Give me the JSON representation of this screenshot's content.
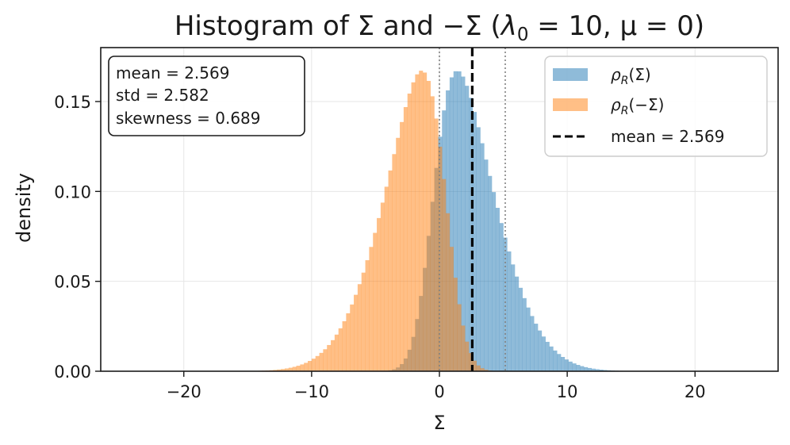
{
  "chart_data": {
    "type": "bar",
    "title": "Histogram of Σ and −Σ (λ₀ = 10, μ = 0)",
    "xlabel": "Σ",
    "ylabel": "density",
    "xlim": [
      -26.5,
      26.5
    ],
    "ylim": [
      0,
      0.18
    ],
    "xticks": [
      -20,
      -10,
      0,
      10,
      20
    ],
    "xtick_labels": [
      "−20",
      "−10",
      "0",
      "10",
      "20"
    ],
    "yticks": [
      0.0,
      0.05,
      0.1,
      0.15
    ],
    "ytick_labels": [
      "0.00",
      "0.05",
      "0.10",
      "0.15"
    ],
    "grid": true,
    "bin_width": 0.3,
    "bin_start": -26.5,
    "bin_end": 26.5,
    "series": [
      {
        "name": "ρ_R(Σ)",
        "color": "#1f77b4",
        "opacity": 0.5,
        "distribution": "skew-normal",
        "mean": 2.569,
        "std": 2.582,
        "skewness": 0.689
      },
      {
        "name": "ρ_R(−Σ)",
        "color": "#ff7f0e",
        "opacity": 0.5,
        "distribution": "skew-normal",
        "mean": -2.569,
        "std": 2.582,
        "skewness": -0.689
      }
    ],
    "vlines": [
      {
        "name": "mean",
        "x": 2.569,
        "style": "dashed",
        "color": "#000000"
      },
      {
        "name": "zero",
        "x": 0,
        "style": "dotted",
        "color": "#808080"
      },
      {
        "name": "mean-plus-std",
        "x": 5.151,
        "style": "dotted",
        "color": "#808080"
      }
    ],
    "stats_box": {
      "lines": [
        "mean = 2.569",
        "std = 2.582",
        "skewness = 0.689"
      ]
    },
    "legend": {
      "placement": "top-right",
      "entries": [
        "ρ_R(Σ)",
        "ρ_R(−Σ)",
        "mean = 2.569"
      ]
    }
  },
  "title_parts": {
    "prefix": "Histogram of Σ and −Σ (",
    "lambda": "λ",
    "lambda_sub": "0",
    "rest": " = 10, μ = 0)"
  },
  "legend_parts": {
    "rho": "ρ",
    "sub_R": "R",
    "arg1": "(Σ)",
    "arg2": "(−Σ)"
  },
  "colors": {
    "blue": "#1f77b4",
    "orange": "#ff7f0e",
    "grid": "#e6e6e6",
    "axis": "#1a1a1a"
  }
}
